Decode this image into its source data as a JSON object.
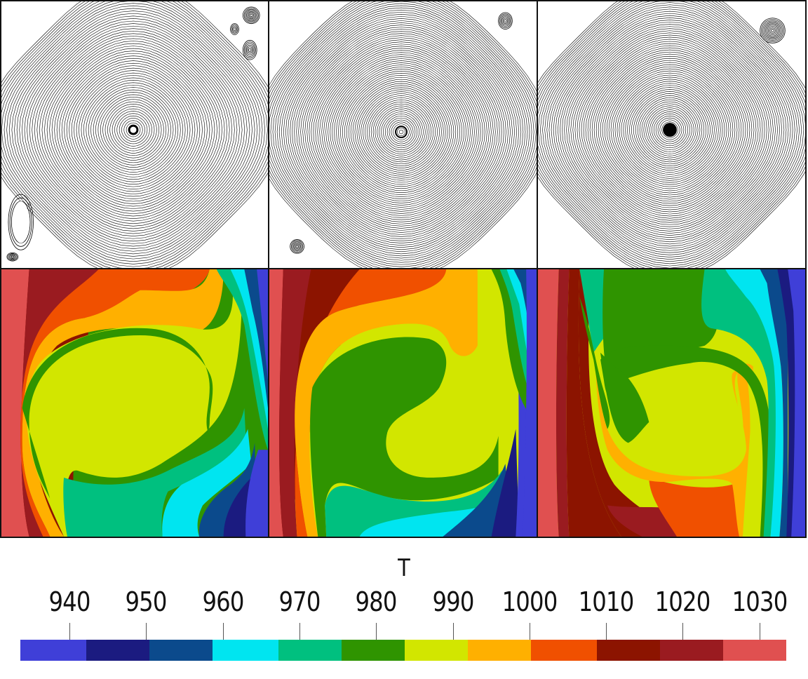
{
  "legend": {
    "title": "T",
    "ticks": [
      "940",
      "950",
      "960",
      "970",
      "980",
      "990",
      "1000",
      "1010",
      "1020",
      "1030"
    ],
    "colors": [
      "#3f3fd8",
      "#1b1b80",
      "#0b4a8c",
      "#00e5f0",
      "#00c07f",
      "#2f9400",
      "#d2e600",
      "#ffb000",
      "#f05000",
      "#8c1400",
      "#9a1b20",
      "#e05050"
    ]
  },
  "panels": {
    "streamlines": [
      "streamlines-1",
      "streamlines-2",
      "streamlines-3"
    ],
    "temperature": [
      "temperature-field-1",
      "temperature-field-2",
      "temperature-field-3"
    ]
  }
}
